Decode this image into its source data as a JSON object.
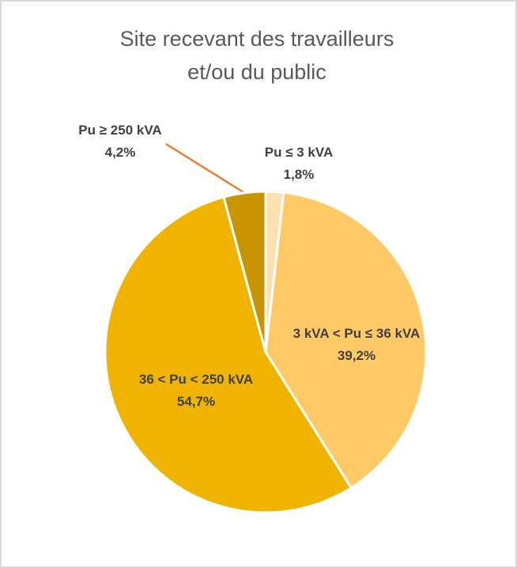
{
  "chart_data": {
    "type": "pie",
    "title": [
      "Site recevant des travailleurs",
      "et/ou du public"
    ],
    "categories": [
      "Pu ≤ 3 kVA",
      "3 kVA < Pu ≤ 36 kVA",
      "36 < Pu < 250 kVA",
      "Pu ≥ 250 kVA"
    ],
    "values": [
      1.8,
      39.2,
      54.7,
      4.2
    ],
    "value_labels": [
      "1,8%",
      "39,2%",
      "54,7%",
      "4,2%"
    ],
    "colors": [
      "#fde0b0",
      "#ffc966",
      "#f0b400",
      "#c89400"
    ]
  }
}
